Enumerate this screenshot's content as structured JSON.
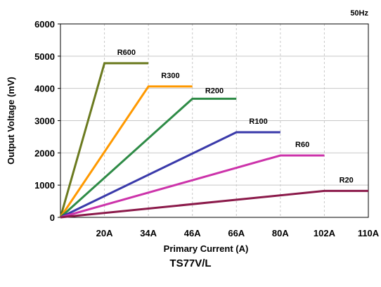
{
  "caption": "TS77V/L",
  "chart_data": {
    "type": "line",
    "note": "50Hz",
    "xlabel": "Primary Current (A)",
    "ylabel": "Output Voltage (mV)",
    "ylim": [
      0,
      6000
    ],
    "yticks": [
      0,
      1000,
      2000,
      3000,
      4000,
      5000,
      6000
    ],
    "xticks": [
      "20A",
      "34A",
      "46A",
      "66A",
      "80A",
      "102A",
      "110A"
    ],
    "grid": true,
    "series": [
      {
        "name": "R600",
        "color": "#6b7a1f",
        "points": [
          [
            "0",
            0
          ],
          [
            "20A",
            4780
          ],
          [
            "34A",
            4780
          ]
        ]
      },
      {
        "name": "R300",
        "color": "#ff9900",
        "points": [
          [
            "0",
            0
          ],
          [
            "34A",
            4060
          ],
          [
            "46A",
            4060
          ]
        ]
      },
      {
        "name": "R200",
        "color": "#2e8b46",
        "points": [
          [
            "0",
            0
          ],
          [
            "46A",
            3680
          ],
          [
            "66A",
            3680
          ]
        ]
      },
      {
        "name": "R100",
        "color": "#3a3aaa",
        "points": [
          [
            "0",
            0
          ],
          [
            "66A",
            2640
          ],
          [
            "80A",
            2640
          ]
        ]
      },
      {
        "name": "R60",
        "color": "#cc33aa",
        "points": [
          [
            "0",
            0
          ],
          [
            "80A",
            1920
          ],
          [
            "102A",
            1920
          ]
        ]
      },
      {
        "name": "R20",
        "color": "#8b1a4a",
        "points": [
          [
            "0",
            0
          ],
          [
            "102A",
            820
          ],
          [
            "110A",
            820
          ]
        ]
      }
    ]
  }
}
